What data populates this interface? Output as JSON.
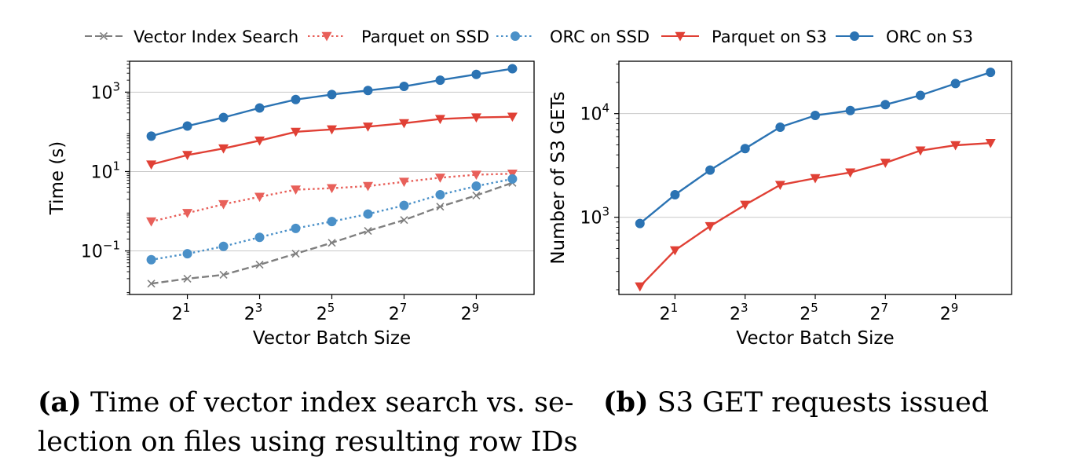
{
  "legend": {
    "entries": [
      {
        "label": "Vector Index Search",
        "color": "#7f7f7f",
        "dash": "dashed",
        "marker": "x"
      },
      {
        "label": "Parquet on SSD",
        "color": "#e8605a",
        "dash": "dotted",
        "marker": "triangle"
      },
      {
        "label": "ORC on SSD",
        "color": "#4a90c8",
        "dash": "dotted",
        "marker": "circle"
      },
      {
        "label": "Parquet on S3",
        "color": "#e04035",
        "dash": "solid",
        "marker": "triangle"
      },
      {
        "label": "ORC on S3",
        "color": "#2b73b3",
        "dash": "solid",
        "marker": "circle"
      }
    ]
  },
  "chart_data": [
    {
      "type": "line",
      "xlabel": "Vector Batch Size",
      "ylabel": "Time (s)",
      "xscale": "log2",
      "yscale": "log10",
      "x": [
        1,
        2,
        4,
        8,
        16,
        32,
        64,
        128,
        256,
        512,
        1024
      ],
      "xticks": [
        {
          "exp": "1",
          "value": 2
        },
        {
          "exp": "3",
          "value": 8
        },
        {
          "exp": "5",
          "value": 32
        },
        {
          "exp": "7",
          "value": 128
        },
        {
          "exp": "9",
          "value": 512
        }
      ],
      "yticks": [
        {
          "exp": "3",
          "value": 1000
        },
        {
          "exp": "1",
          "value": 10
        },
        {
          "exp": "−1",
          "value": 0.1
        }
      ],
      "tick_base": "10",
      "xtick_base": "2",
      "ylim": [
        0.008,
        6000
      ],
      "grid": "horizontal",
      "series": [
        {
          "name": "Vector Index Search",
          "values": [
            0.015,
            0.02,
            0.025,
            0.045,
            0.085,
            0.16,
            0.32,
            0.6,
            1.3,
            2.5,
            5.2
          ]
        },
        {
          "name": "Parquet on SSD",
          "values": [
            0.55,
            0.9,
            1.5,
            2.3,
            3.5,
            3.8,
            4.3,
            5.5,
            7.0,
            8.3,
            8.8
          ]
        },
        {
          "name": "ORC on SSD",
          "values": [
            0.06,
            0.085,
            0.13,
            0.22,
            0.37,
            0.55,
            0.85,
            1.4,
            2.6,
            4.3,
            6.5
          ]
        },
        {
          "name": "Parquet on S3",
          "values": [
            15,
            26,
            38,
            60,
            100,
            115,
            135,
            165,
            210,
            230,
            240
          ]
        },
        {
          "name": "ORC on S3",
          "values": [
            78,
            140,
            230,
            400,
            650,
            870,
            1100,
            1400,
            2000,
            2800,
            3900
          ]
        }
      ]
    },
    {
      "type": "line",
      "xlabel": "Vector Batch Size",
      "ylabel": "Number of S3 GETs",
      "xscale": "log2",
      "yscale": "log10",
      "x": [
        1,
        2,
        4,
        8,
        16,
        32,
        64,
        128,
        256,
        512,
        1024
      ],
      "xticks": [
        {
          "exp": "1",
          "value": 2
        },
        {
          "exp": "3",
          "value": 8
        },
        {
          "exp": "5",
          "value": 32
        },
        {
          "exp": "7",
          "value": 128
        },
        {
          "exp": "9",
          "value": 512
        }
      ],
      "yticks": [
        {
          "exp": "4",
          "value": 10000
        },
        {
          "exp": "3",
          "value": 1000
        }
      ],
      "tick_base": "10",
      "xtick_base": "2",
      "ylim": [
        180,
        32000
      ],
      "grid": "horizontal",
      "series": [
        {
          "name": "Parquet on S3",
          "values": [
            215,
            480,
            820,
            1320,
            2050,
            2380,
            2700,
            3350,
            4400,
            4950,
            5200
          ]
        },
        {
          "name": "ORC on S3",
          "values": [
            870,
            1650,
            2850,
            4600,
            7400,
            9600,
            10700,
            12200,
            15000,
            19500,
            25000
          ]
        }
      ]
    }
  ],
  "captions": {
    "a": {
      "label": "(a)",
      "line1": "Time of vector index search vs. se-",
      "line2": "lection on files using resulting row IDs"
    },
    "b": {
      "label": "(b)",
      "text": "S3 GET requests issued"
    }
  }
}
